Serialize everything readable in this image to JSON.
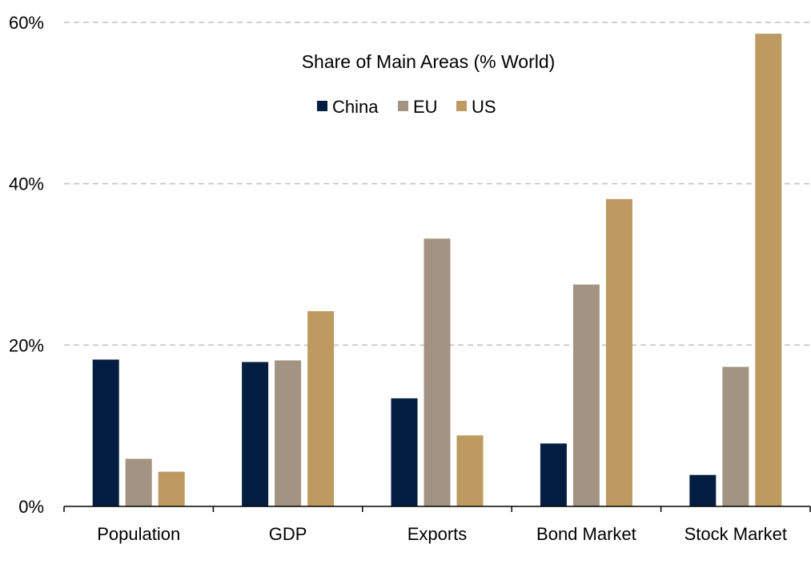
{
  "chart_data": {
    "type": "bar",
    "title": "Share of Main Areas (% World)",
    "xlabel": "",
    "ylabel": "",
    "categories": [
      "Population",
      "GDP",
      "Exports",
      "Bond Market",
      "Stock Market"
    ],
    "series": [
      {
        "name": "China",
        "color": "#041E42",
        "values": [
          18.2,
          17.9,
          13.4,
          7.8,
          3.9
        ]
      },
      {
        "name": "EU",
        "color": "#A39382",
        "values": [
          5.9,
          18.1,
          33.2,
          27.5,
          17.3
        ]
      },
      {
        "name": "US",
        "color": "#BD9A5F",
        "values": [
          4.3,
          24.2,
          8.8,
          38.1,
          58.6
        ]
      }
    ],
    "ylim": [
      0,
      60
    ],
    "yticks": [
      0,
      20,
      40,
      60
    ],
    "ytick_labels": [
      "0%",
      "20%",
      "40%",
      "60%"
    ],
    "grid": true,
    "legend_position": "top-center"
  }
}
